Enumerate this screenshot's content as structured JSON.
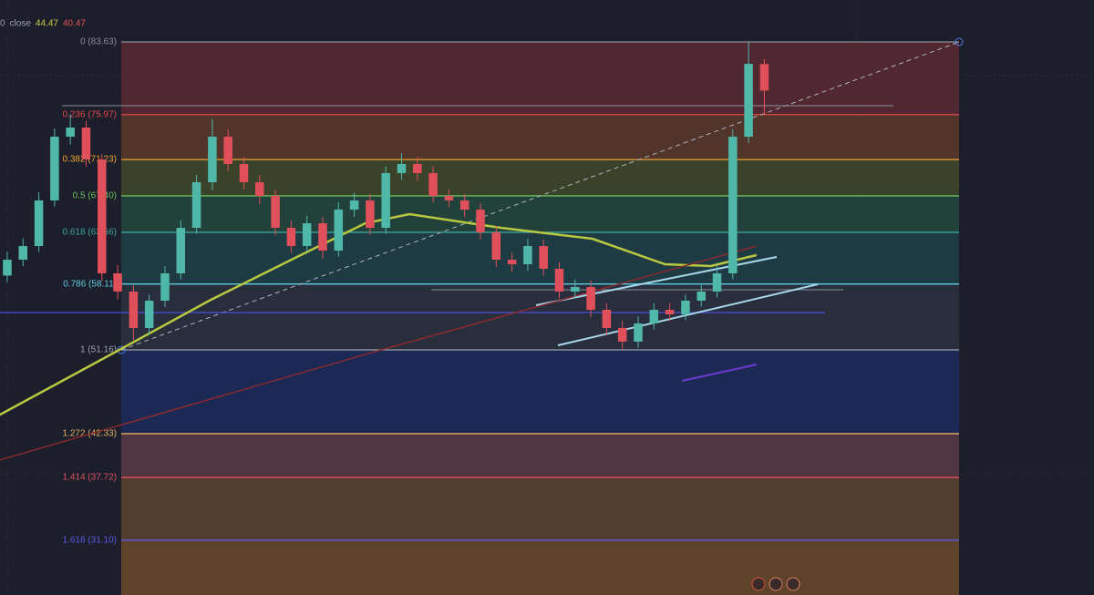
{
  "chart_data": {
    "type": "candlestick",
    "legend": [
      "0",
      "close",
      "44.47",
      "40.47"
    ],
    "legend_colors": [
      "#9aa0b0",
      "#9aa0b0",
      "#c8d040",
      "#e05050"
    ],
    "up_color": "#4fb8a8",
    "down_color": "#e0505a",
    "xlim": [
      -0.46,
      68.9
    ],
    "ylim": [
      25.32,
      88.05
    ],
    "open": [
      59.0,
      60.67,
      62.11,
      66.92,
      73.64,
      74.6,
      71.24,
      59.23,
      57.31,
      53.47,
      56.35,
      59.23,
      64.03,
      68.84,
      73.64,
      70.76,
      68.84,
      67.4,
      64.03,
      62.11,
      64.51,
      61.63,
      65.95,
      66.92,
      64.03,
      69.8,
      70.76,
      69.8,
      67.4,
      66.92,
      65.95,
      63.55,
      60.67,
      60.19,
      62.11,
      59.71,
      57.31,
      57.79,
      55.39,
      53.47,
      52.03,
      53.95,
      55.39,
      54.91,
      56.35,
      57.31,
      59.23,
      73.64,
      81.3
    ],
    "high": [
      61.5,
      62.9,
      67.8,
      74.5,
      76.0,
      75.3,
      71.8,
      60.1,
      58.0,
      57.0,
      60.0,
      64.8,
      69.6,
      75.5,
      74.4,
      71.5,
      69.6,
      68.0,
      64.8,
      65.3,
      65.2,
      66.7,
      67.7,
      67.6,
      70.5,
      71.9,
      71.5,
      70.5,
      68.1,
      67.6,
      66.6,
      64.2,
      61.4,
      62.9,
      62.8,
      60.4,
      58.6,
      58.5,
      56.1,
      54.2,
      54.7,
      56.1,
      56.1,
      57.0,
      58.1,
      60.0,
      74.4,
      83.63,
      81.8
    ],
    "low": [
      58.3,
      60.0,
      61.5,
      66.3,
      72.8,
      70.5,
      58.4,
      56.5,
      52.2,
      52.8,
      55.7,
      58.6,
      63.4,
      68.0,
      70.0,
      68.1,
      66.5,
      63.2,
      61.4,
      61.5,
      60.8,
      61.0,
      65.2,
      63.3,
      63.4,
      69.1,
      69.0,
      66.7,
      66.2,
      65.2,
      62.8,
      59.9,
      59.4,
      59.5,
      59.0,
      56.6,
      56.6,
      54.6,
      52.7,
      51.2,
      51.4,
      53.3,
      54.2,
      54.3,
      55.7,
      56.7,
      58.6,
      73.0,
      76.0
    ],
    "close": [
      60.67,
      62.11,
      66.92,
      73.64,
      74.6,
      71.24,
      59.23,
      57.31,
      53.47,
      56.35,
      59.23,
      64.03,
      68.84,
      73.64,
      70.76,
      68.84,
      67.4,
      64.03,
      62.11,
      64.51,
      61.63,
      65.95,
      66.92,
      64.03,
      69.8,
      70.76,
      69.8,
      67.4,
      66.92,
      65.95,
      63.55,
      60.67,
      60.19,
      62.11,
      59.71,
      57.31,
      57.79,
      55.39,
      53.47,
      52.03,
      53.95,
      55.39,
      54.91,
      56.35,
      57.31,
      59.23,
      73.64,
      81.32,
      78.5
    ],
    "lines": [
      {
        "color": "#b8c840",
        "x": [
          -0.5,
          7,
          12.8,
          18.6,
          22.7,
          25.5,
          31.3,
          37.1,
          41.7,
          44.6,
          47.5
        ],
        "values": [
          44.3,
          51.07,
          56.35,
          61.15,
          64.51,
          65.47,
          64.03,
          62.88,
          60.19,
          60.0,
          61.15
        ]
      },
      {
        "color": "#8a2a30",
        "x": [
          -0.5,
          23.5,
          47.5
        ],
        "values": [
          39.54,
          51.07,
          62.11
        ]
      }
    ],
    "fib_levels": [
      {
        "price": 83.63,
        "label": "0 (83.63)",
        "color": "#8a8f9c",
        "band": "#5a2a34"
      },
      {
        "price": 75.97,
        "label": "0.236 (75.97)",
        "color": "#e04848",
        "band": "#5a3a2c"
      },
      {
        "price": 71.23,
        "label": "0.382 (71.23)",
        "color": "#f0a030",
        "band": "#3f4a2a"
      },
      {
        "price": 67.4,
        "label": "0.5 (67.40)",
        "color": "#6bbf5a",
        "band": "#24483e"
      },
      {
        "price": 63.56,
        "label": "0.618 (63.56)",
        "color": "#3aa59a",
        "band": "#1f3f48"
      },
      {
        "price": 58.11,
        "label": "0.786 (58.11)",
        "color": "#5ccbe0",
        "band": "#2c3140"
      },
      {
        "price": 51.16,
        "label": "1 (51.16)",
        "color": "#9aa0aa",
        "band": "#1c2c5c"
      },
      {
        "price": 42.33,
        "label": "1.272 (42.33)",
        "color": "#e0b060",
        "band": "#5a3a44"
      },
      {
        "price": 37.72,
        "label": "1.414 (37.72)",
        "color": "#e05060",
        "band": "#5a4432"
      },
      {
        "price": 31.1,
        "label": "1.618 (31.10)",
        "color": "#5a5ae8",
        "band": "#6a4a2c"
      }
    ]
  }
}
